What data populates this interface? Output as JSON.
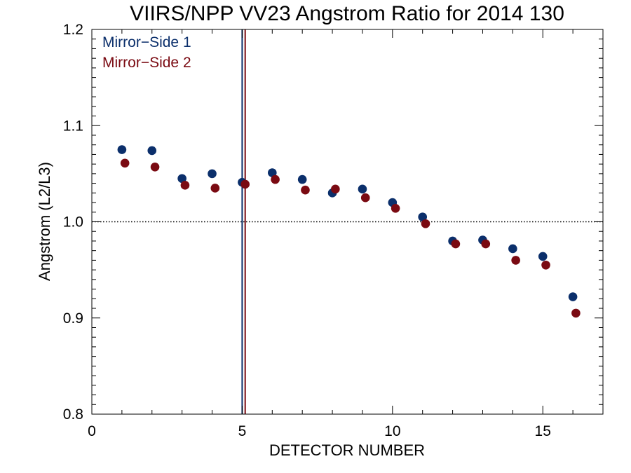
{
  "chart_data": {
    "type": "scatter",
    "title": "VIIRS/NPP VV23 Angstrom Ratio for 2014 130",
    "xlabel": "DETECTOR NUMBER",
    "ylabel": "Angstrom (L2/L3)",
    "xlim": [
      0,
      17
    ],
    "ylim": [
      0.8,
      1.2
    ],
    "x_ticks": [
      0,
      5,
      10,
      15
    ],
    "x_tick_labels": [
      "0",
      "5",
      "10",
      "15"
    ],
    "y_ticks": [
      0.8,
      0.9,
      1.0,
      1.1,
      1.2
    ],
    "y_tick_labels": [
      "0.8",
      "0.9",
      "1.0",
      "1.1",
      "1.2"
    ],
    "reference_line_y": 1.0,
    "vertical_lines": [
      {
        "x": 5.0,
        "color": "#0b2f6b"
      },
      {
        "x": 5.1,
        "color": "#7a0a12"
      }
    ],
    "legend_position": "top-left",
    "series": [
      {
        "name": "Mirror−Side 1",
        "color": "#0b2f6b",
        "x": [
          1,
          2,
          3,
          4,
          5,
          6,
          7,
          8,
          9,
          10,
          11,
          12,
          13,
          14,
          15,
          16
        ],
        "y": [
          1.075,
          1.074,
          1.045,
          1.05,
          1.041,
          1.051,
          1.044,
          1.03,
          1.034,
          1.02,
          1.005,
          0.98,
          0.981,
          0.972,
          0.964,
          0.922
        ]
      },
      {
        "name": "Mirror−Side 2",
        "color": "#7a0a12",
        "x": [
          1.1,
          2.1,
          3.1,
          4.1,
          5.1,
          6.1,
          7.1,
          8.1,
          9.1,
          10.1,
          11.1,
          12.1,
          13.1,
          14.1,
          15.1,
          16.1
        ],
        "y": [
          1.061,
          1.057,
          1.038,
          1.035,
          1.039,
          1.044,
          1.033,
          1.034,
          1.025,
          1.014,
          0.998,
          0.977,
          0.977,
          0.96,
          0.955,
          0.905
        ]
      }
    ]
  }
}
